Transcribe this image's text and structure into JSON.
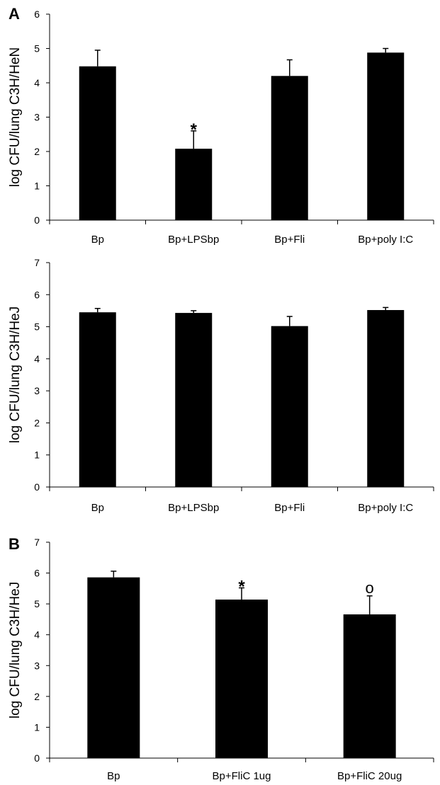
{
  "chart_data": [
    {
      "type": "bar",
      "panel_label": "A",
      "ylabel": "log CFU/lung C3H/HeN",
      "xlabel": "",
      "ylim": [
        0,
        6
      ],
      "yticks": [
        0,
        1,
        2,
        3,
        4,
        5,
        6
      ],
      "categories": [
        "Bp",
        "Bp+LPSbp",
        "Bp+Fli",
        "Bp+poly I:C"
      ],
      "values": [
        4.48,
        2.08,
        4.2,
        4.88
      ],
      "errors": [
        0.47,
        0.52,
        0.47,
        0.12
      ],
      "annotations": [
        "",
        "*",
        "",
        ""
      ],
      "bar_color": "#000000"
    },
    {
      "type": "bar",
      "panel_label": "",
      "ylabel": "log CFU/lung C3H/HeJ",
      "xlabel": "",
      "ylim": [
        0,
        7
      ],
      "yticks": [
        0,
        1,
        2,
        3,
        4,
        5,
        6,
        7
      ],
      "categories": [
        "Bp",
        "Bp+LPSbp",
        "Bp+Fli",
        "Bp+poly I:C"
      ],
      "values": [
        5.45,
        5.43,
        5.02,
        5.52
      ],
      "errors": [
        0.12,
        0.07,
        0.3,
        0.08
      ],
      "annotations": [
        "",
        "",
        "",
        ""
      ],
      "bar_color": "#000000"
    },
    {
      "type": "bar",
      "panel_label": "B",
      "ylabel": "log CFU/lung C3H/HeJ",
      "xlabel": "",
      "ylim": [
        0,
        7
      ],
      "yticks": [
        0,
        1,
        2,
        3,
        4,
        5,
        6,
        7
      ],
      "categories": [
        "Bp",
        "Bp+FliC 1ug",
        "Bp+FliC 20ug"
      ],
      "values": [
        5.86,
        5.14,
        4.66
      ],
      "errors": [
        0.2,
        0.38,
        0.6
      ],
      "annotations": [
        "",
        "*",
        "o"
      ],
      "bar_color": "#000000"
    }
  ]
}
